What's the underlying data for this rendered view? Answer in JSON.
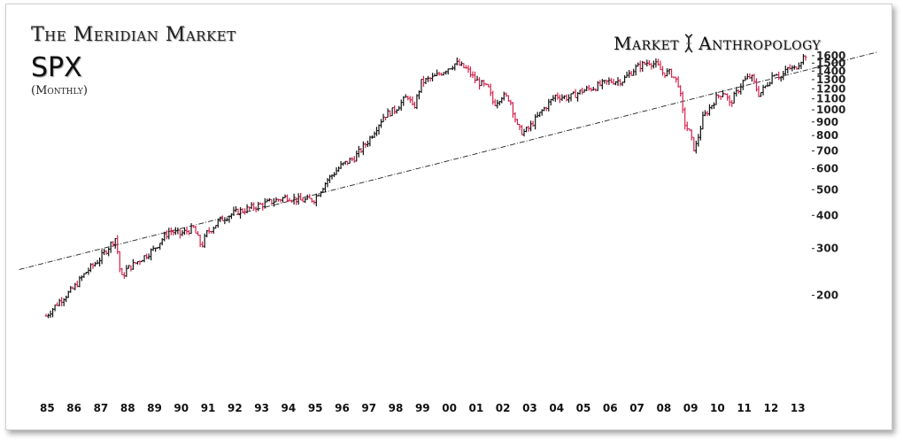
{
  "header": {
    "title": "The Meridian Market",
    "symbol": "SPX",
    "frequency": "(Monthly)",
    "brand_left": "Market",
    "brand_right": "Anthropology"
  },
  "chart_data": {
    "type": "ohlc",
    "scale": "log",
    "ylim": [
      120,
      1700
    ],
    "y_ticks": [
      200,
      300,
      400,
      500,
      600,
      700,
      800,
      900,
      1000,
      1100,
      1200,
      1300,
      1400,
      1500,
      1600
    ],
    "y_tick_labels": [
      "200",
      "300",
      "400",
      "500",
      "600",
      "700",
      "800",
      "900",
      "1000",
      "1100",
      "1200",
      "1300",
      "1400",
      "1500",
      "1600"
    ],
    "x_tick_labels": [
      "85",
      "86",
      "87",
      "88",
      "89",
      "90",
      "91",
      "92",
      "93",
      "94",
      "95",
      "96",
      "97",
      "98",
      "99",
      "00",
      "01",
      "02",
      "03",
      "04",
      "05",
      "06",
      "07",
      "08",
      "09",
      "10",
      "11",
      "12",
      "13"
    ],
    "x_range": [
      1985.0,
      2013.4
    ],
    "colors": {
      "up": "#111111",
      "down": "#d4214b",
      "trendline": "#222222"
    },
    "series": [
      {
        "values": [
          [
            1985.0,
            167
          ],
          [
            1985.5,
            190
          ],
          [
            1986.0,
            211
          ],
          [
            1986.5,
            245
          ],
          [
            1987.0,
            274
          ],
          [
            1987.6,
            330
          ],
          [
            1987.8,
            230
          ],
          [
            1988.0,
            250
          ],
          [
            1988.5,
            272
          ],
          [
            1989.0,
            297
          ],
          [
            1989.6,
            350
          ],
          [
            1990.0,
            340
          ],
          [
            1990.5,
            358
          ],
          [
            1990.8,
            305
          ],
          [
            1991.0,
            343
          ],
          [
            1991.5,
            385
          ],
          [
            1992.0,
            408
          ],
          [
            1993.0,
            438
          ],
          [
            1994.0,
            470
          ],
          [
            1994.5,
            455
          ],
          [
            1995.0,
            460
          ],
          [
            1995.5,
            545
          ],
          [
            1996.0,
            615
          ],
          [
            1996.5,
            660
          ],
          [
            1997.0,
            760
          ],
          [
            1997.6,
            950
          ],
          [
            1998.0,
            1000
          ],
          [
            1998.5,
            1130
          ],
          [
            1998.7,
            1000
          ],
          [
            1999.0,
            1270
          ],
          [
            1999.5,
            1330
          ],
          [
            2000.0,
            1440
          ],
          [
            2000.3,
            1500
          ],
          [
            2000.7,
            1420
          ],
          [
            2001.0,
            1300
          ],
          [
            2001.5,
            1200
          ],
          [
            2001.7,
            1050
          ],
          [
            2002.0,
            1130
          ],
          [
            2002.3,
            1100
          ],
          [
            2002.6,
            850
          ],
          [
            2002.8,
            820
          ],
          [
            2003.0,
            850
          ],
          [
            2003.5,
            990
          ],
          [
            2004.0,
            1130
          ],
          [
            2004.5,
            1110
          ],
          [
            2005.0,
            1180
          ],
          [
            2005.5,
            1220
          ],
          [
            2006.0,
            1280
          ],
          [
            2006.5,
            1290
          ],
          [
            2007.0,
            1440
          ],
          [
            2007.5,
            1520
          ],
          [
            2007.8,
            1470
          ],
          [
            2008.0,
            1380
          ],
          [
            2008.3,
            1380
          ],
          [
            2008.6,
            1250
          ],
          [
            2008.8,
            900
          ],
          [
            2009.0,
            820
          ],
          [
            2009.2,
            700
          ],
          [
            2009.5,
            930
          ],
          [
            2010.0,
            1110
          ],
          [
            2010.3,
            1180
          ],
          [
            2010.5,
            1050
          ],
          [
            2010.8,
            1180
          ],
          [
            2011.0,
            1280
          ],
          [
            2011.3,
            1340
          ],
          [
            2011.6,
            1140
          ],
          [
            2011.9,
            1250
          ],
          [
            2012.2,
            1400
          ],
          [
            2012.4,
            1320
          ],
          [
            2012.7,
            1440
          ],
          [
            2012.9,
            1420
          ],
          [
            2013.2,
            1560
          ],
          [
            2013.4,
            1640
          ]
        ]
      }
    ],
    "trendline": [
      [
        1984.0,
        250
      ],
      [
        2016.0,
        1650
      ]
    ]
  }
}
